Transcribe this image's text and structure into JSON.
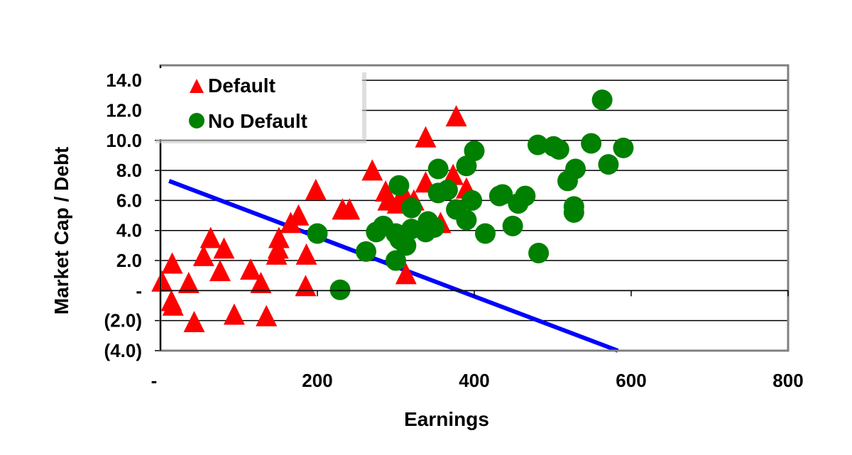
{
  "chart_data": {
    "type": "scatter",
    "title": "",
    "xlabel": "Earnings",
    "ylabel": "Market Cap / Debt",
    "xlim": [
      0,
      800
    ],
    "ylim": [
      -4,
      15
    ],
    "x_ticks": [
      0,
      200,
      400,
      600,
      800
    ],
    "x_tick_labels": [
      "-",
      "200",
      "400",
      "600",
      "800"
    ],
    "y_ticks": [
      14,
      12,
      10,
      8,
      6,
      4,
      2,
      0,
      -2,
      -4
    ],
    "y_tick_labels": [
      "14.0",
      "12.0",
      "10.0",
      "8.0",
      "6.0",
      "4.0",
      "2.0",
      "-",
      "(2.0)",
      "(4.0)"
    ],
    "grid": "horizontal",
    "legend_position": "top-left",
    "series": [
      {
        "name": "Default",
        "marker": "triangle",
        "color": "#ff0000",
        "points": [
          [
            2,
            0.4
          ],
          [
            15,
            1.6
          ],
          [
            36,
            0.3
          ],
          [
            14,
            -0.9
          ],
          [
            16,
            -1.2
          ],
          [
            43,
            -2.3
          ],
          [
            64,
            3.3
          ],
          [
            55,
            2.1
          ],
          [
            81,
            2.6
          ],
          [
            76,
            1.1
          ],
          [
            94,
            -1.8
          ],
          [
            115,
            1.2
          ],
          [
            128,
            0.3
          ],
          [
            135,
            -1.9
          ],
          [
            151,
            3.3
          ],
          [
            150,
            2.6
          ],
          [
            148,
            2.2
          ],
          [
            166,
            4.3
          ],
          [
            176,
            4.8
          ],
          [
            186,
            2.2
          ],
          [
            185,
            0.1
          ],
          [
            198,
            6.5
          ],
          [
            232,
            5.2
          ],
          [
            241,
            5.2
          ],
          [
            270,
            7.8
          ],
          [
            287,
            6.4
          ],
          [
            290,
            5.8
          ],
          [
            302,
            5.6
          ],
          [
            323,
            5.8
          ],
          [
            313,
            0.9
          ],
          [
            338,
            10.0
          ],
          [
            377,
            11.4
          ],
          [
            338,
            7.0
          ],
          [
            373,
            7.5
          ],
          [
            357,
            4.3
          ],
          [
            390,
            6.6
          ],
          [
            311,
            6.2
          ]
        ]
      },
      {
        "name": "No Default",
        "marker": "circle",
        "color": "#008000",
        "points": [
          [
            200,
            3.8
          ],
          [
            229,
            0.05
          ],
          [
            262,
            2.6
          ],
          [
            275,
            3.9
          ],
          [
            284,
            4.3
          ],
          [
            300,
            3.8
          ],
          [
            305,
            3.4
          ],
          [
            313,
            3.0
          ],
          [
            300,
            2.0
          ],
          [
            304,
            7.0
          ],
          [
            320,
            5.5
          ],
          [
            320,
            4.1
          ],
          [
            341,
            4.6
          ],
          [
            349,
            4.2
          ],
          [
            338,
            3.9
          ],
          [
            354,
            8.1
          ],
          [
            354,
            6.5
          ],
          [
            366,
            6.7
          ],
          [
            377,
            5.4
          ],
          [
            390,
            4.7
          ],
          [
            397,
            6.0
          ],
          [
            390,
            8.3
          ],
          [
            400,
            9.3
          ],
          [
            414,
            3.8
          ],
          [
            432,
            6.3
          ],
          [
            436,
            6.4
          ],
          [
            456,
            5.8
          ],
          [
            465,
            6.3
          ],
          [
            449,
            4.3
          ],
          [
            482,
            2.5
          ],
          [
            481,
            9.7
          ],
          [
            501,
            9.6
          ],
          [
            508,
            9.4
          ],
          [
            549,
            9.8
          ],
          [
            590,
            9.5
          ],
          [
            571,
            8.4
          ],
          [
            563,
            12.7
          ],
          [
            529,
            8.1
          ],
          [
            519,
            7.3
          ],
          [
            527,
            5.6
          ],
          [
            527,
            5.2
          ]
        ]
      }
    ],
    "line": {
      "color": "#0000ff",
      "points": [
        [
          11,
          7.3
        ],
        [
          583,
          -4.0
        ]
      ]
    }
  }
}
